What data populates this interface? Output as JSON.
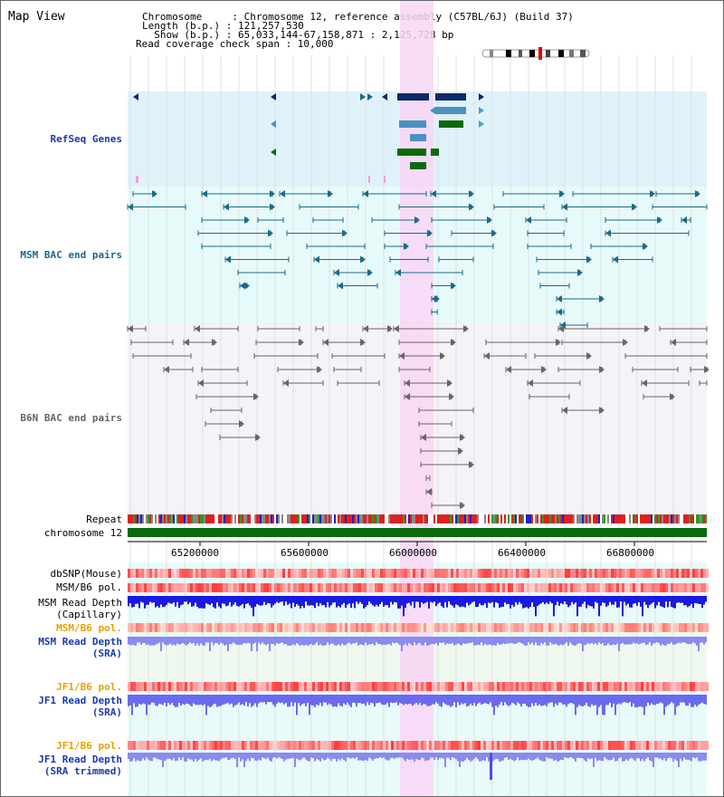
{
  "title": "Map View",
  "header": {
    "line1": "Chromosome     : Chromosome 12, reference assembly (C57BL/6J) (Build 37)",
    "line2": "Length (b.p.) : 121,257,530",
    "line3": "  Show (b.p.) : 65,033,144-67,158,871 : 2,125,728 bp",
    "line4": "Read coverage check span : 10,000"
  },
  "tracks": {
    "refseq": "RefSeq Genes",
    "msm_bac": "MSM BAC end pairs",
    "b6n_bac": "B6N BAC end pairs",
    "repeat": "Repeat",
    "chromosome": "chromosome 12",
    "dbsnp": "dbSNP(Mouse)",
    "msmb6_pol_1": "MSM/B6 pol.",
    "msm_depth_cap_1": "MSM Read Depth",
    "msm_depth_cap_2": "(Capillary)",
    "msmb6_pol_2": "MSM/B6 pol.",
    "msm_depth_sra_1": "MSM Read Depth",
    "msm_depth_sra_2": "(SRA)",
    "jf1_pol_1": "JF1/B6 pol.",
    "jf1_depth_1": "JF1 Read Depth",
    "jf1_depth_2": "(SRA)",
    "jf1_pol_2": "JF1/B6 pol.",
    "jf1_trim_1": "JF1 Read Depth",
    "jf1_trim_2": "(SRA trimmed)"
  },
  "axis": {
    "ticks": [
      "65200000",
      "65600000",
      "66000000",
      "66400000",
      "66800000"
    ]
  },
  "colors": {
    "refseq_bg": "#dff2fa",
    "msm_bg": "#e6fafa",
    "b6n_bg": "#f3f3f8",
    "highlight": "#f8d6f4",
    "navy": "#0a2a6a",
    "steel": "#4a90c0",
    "green": "#0a6a0a",
    "teal": "#1a6a8a",
    "gray": "#666666",
    "blue_depth": "#1a1ae0",
    "light_blue_depth": "#7a7af0",
    "orange_label": "#e8a000",
    "blue_label": "#1a3ab0",
    "chrom_green": "#0a6a0a"
  }
}
